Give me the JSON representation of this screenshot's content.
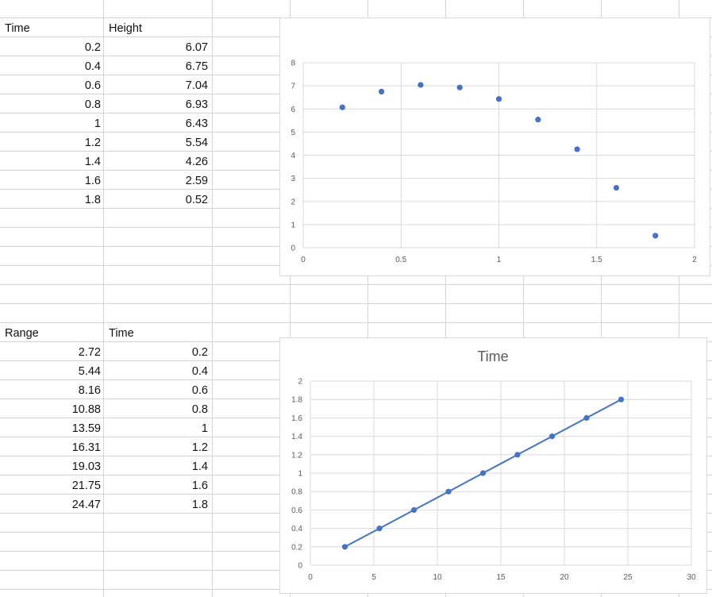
{
  "table1": {
    "headers": [
      "Time",
      "Height"
    ],
    "rows": [
      [
        "0.2",
        "6.07"
      ],
      [
        "0.4",
        "6.75"
      ],
      [
        "0.6",
        "7.04"
      ],
      [
        "0.8",
        "6.93"
      ],
      [
        "1",
        "6.43"
      ],
      [
        "1.2",
        "5.54"
      ],
      [
        "1.4",
        "4.26"
      ],
      [
        "1.6",
        "2.59"
      ],
      [
        "1.8",
        "0.52"
      ]
    ]
  },
  "table2": {
    "headers": [
      "Range",
      "Time"
    ],
    "rows": [
      [
        "2.72",
        "0.2"
      ],
      [
        "5.44",
        "0.4"
      ],
      [
        "8.16",
        "0.6"
      ],
      [
        "10.88",
        "0.8"
      ],
      [
        "13.59",
        "1"
      ],
      [
        "16.31",
        "1.2"
      ],
      [
        "19.03",
        "1.4"
      ],
      [
        "21.75",
        "1.6"
      ],
      [
        "24.47",
        "1.8"
      ]
    ]
  },
  "colors": {
    "marker": "#4472c4",
    "gridline": "#d9d9d9",
    "cell_border": "#d4d4d4",
    "axis_text": "#595959"
  },
  "chart_data": [
    {
      "type": "scatter",
      "title": "",
      "xlabel": "",
      "ylabel": "",
      "xlim": [
        0,
        2
      ],
      "ylim": [
        0,
        8
      ],
      "xticks": [
        "0",
        "0.5",
        "1",
        "1.5",
        "2"
      ],
      "yticks": [
        "0",
        "1",
        "2",
        "3",
        "4",
        "5",
        "6",
        "7",
        "8"
      ],
      "grid": true,
      "legend": "none",
      "series": [
        {
          "x": [
            0.2,
            0.4,
            0.6,
            0.8,
            1,
            1.2,
            1.4,
            1.6,
            1.8
          ],
          "y": [
            6.07,
            6.75,
            7.04,
            6.93,
            6.43,
            5.54,
            4.26,
            2.59,
            0.52
          ]
        }
      ]
    },
    {
      "type": "line",
      "title": "Time",
      "xlabel": "",
      "ylabel": "",
      "xlim": [
        0,
        30
      ],
      "ylim": [
        0,
        2
      ],
      "xticks": [
        "0",
        "5",
        "10",
        "15",
        "20",
        "25",
        "30"
      ],
      "yticks": [
        "0",
        "0.2",
        "0.4",
        "0.6",
        "0.8",
        "1",
        "1.2",
        "1.4",
        "1.6",
        "1.8",
        "2"
      ],
      "grid": true,
      "legend": "none",
      "series": [
        {
          "x": [
            2.72,
            5.44,
            8.16,
            10.88,
            13.59,
            16.31,
            19.03,
            21.75,
            24.47
          ],
          "y": [
            0.2,
            0.4,
            0.6,
            0.8,
            1,
            1.2,
            1.4,
            1.6,
            1.8
          ]
        }
      ]
    }
  ]
}
